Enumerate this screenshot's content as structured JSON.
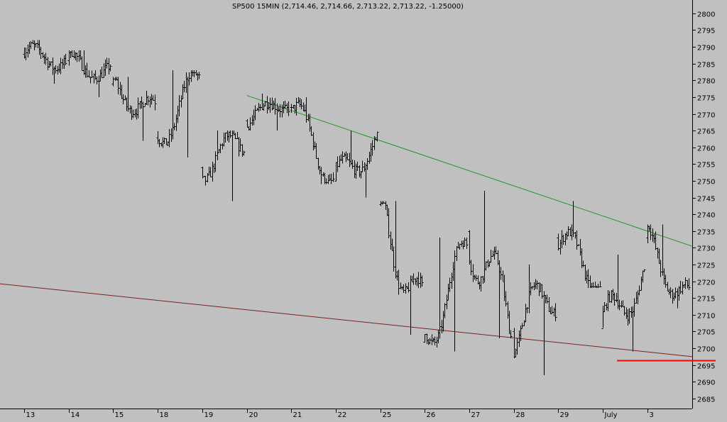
{
  "chart_data": {
    "type": "ohlc",
    "title": "SP500 15MIN (2,714.46, 2,714.66, 2,713.22, 2,713.22, -1.25000)",
    "ylim": [
      2682,
      2804
    ],
    "y_ticks": [
      2685,
      2690,
      2695,
      2700,
      2705,
      2710,
      2715,
      2720,
      2725,
      2730,
      2735,
      2740,
      2745,
      2750,
      2755,
      2760,
      2765,
      2770,
      2775,
      2780,
      2785,
      2790,
      2795,
      2800
    ],
    "x_ticks": [
      "13",
      "14",
      "15",
      "18",
      "19",
      "20",
      "21",
      "22",
      "25",
      "26",
      "27",
      "28",
      "29",
      "July",
      "3"
    ],
    "grid": false,
    "colors": {
      "background": "#c0c0c0",
      "bars": "#000000",
      "resistance": "#1a9a1a",
      "support": "#7a2020",
      "level": "#ff0000"
    },
    "sessions": [
      {
        "label": "13",
        "low": 2779,
        "high": 2792,
        "start": 2788,
        "end": 2786
      },
      {
        "label": "14",
        "low": 2775,
        "high": 2789,
        "start": 2786,
        "end": 2782
      },
      {
        "label": "15",
        "low": 2762,
        "high": 2781,
        "start": 2779,
        "end": 2770
      },
      {
        "label": "18",
        "low": 2757,
        "high": 2783,
        "start": 2763,
        "end": 2780
      },
      {
        "label": "19",
        "low": 2744,
        "high": 2765,
        "start": 2754,
        "end": 2762
      },
      {
        "label": "20",
        "low": 2765,
        "high": 2776,
        "start": 2768,
        "end": 2774
      },
      {
        "label": "21",
        "low": 2749,
        "high": 2775,
        "start": 2772,
        "end": 2752
      },
      {
        "label": "22",
        "low": 2745,
        "high": 2765,
        "start": 2750,
        "end": 2762
      },
      {
        "label": "25",
        "low": 2704,
        "high": 2744,
        "start": 2743,
        "end": 2710
      },
      {
        "label": "26",
        "low": 2699,
        "high": 2733,
        "start": 2702,
        "end": 2728
      },
      {
        "label": "27",
        "low": 2703,
        "high": 2747,
        "start": 2735,
        "end": 2708
      },
      {
        "label": "28",
        "low": 2692,
        "high": 2725,
        "start": 2705,
        "end": 2718
      },
      {
        "label": "29",
        "low": 2718,
        "high": 2744,
        "start": 2733,
        "end": 2720
      },
      {
        "label": "July",
        "low": 2699,
        "high": 2728,
        "start": 2706,
        "end": 2722
      },
      {
        "label": "3",
        "low": 2712,
        "high": 2737,
        "start": 2733,
        "end": 2713
      }
    ],
    "trendlines": [
      {
        "name": "resistance",
        "from": {
          "session": "20",
          "value": 2775.5
        },
        "to": {
          "session": "3",
          "value": 2730.5
        }
      },
      {
        "name": "support",
        "from": {
          "session": "13",
          "value": 2718.5
        },
        "to": {
          "session": "3",
          "value": 2697.5
        }
      }
    ],
    "horizontal_levels": [
      {
        "name": "level",
        "value": 2696.5
      }
    ]
  }
}
